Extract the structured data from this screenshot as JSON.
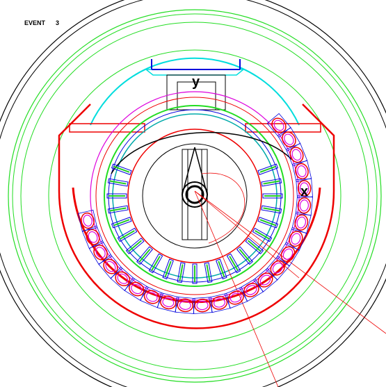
{
  "header": {
    "label": "EVENT",
    "number": "3"
  },
  "axes": {
    "y": "y",
    "x": "x"
  }
}
